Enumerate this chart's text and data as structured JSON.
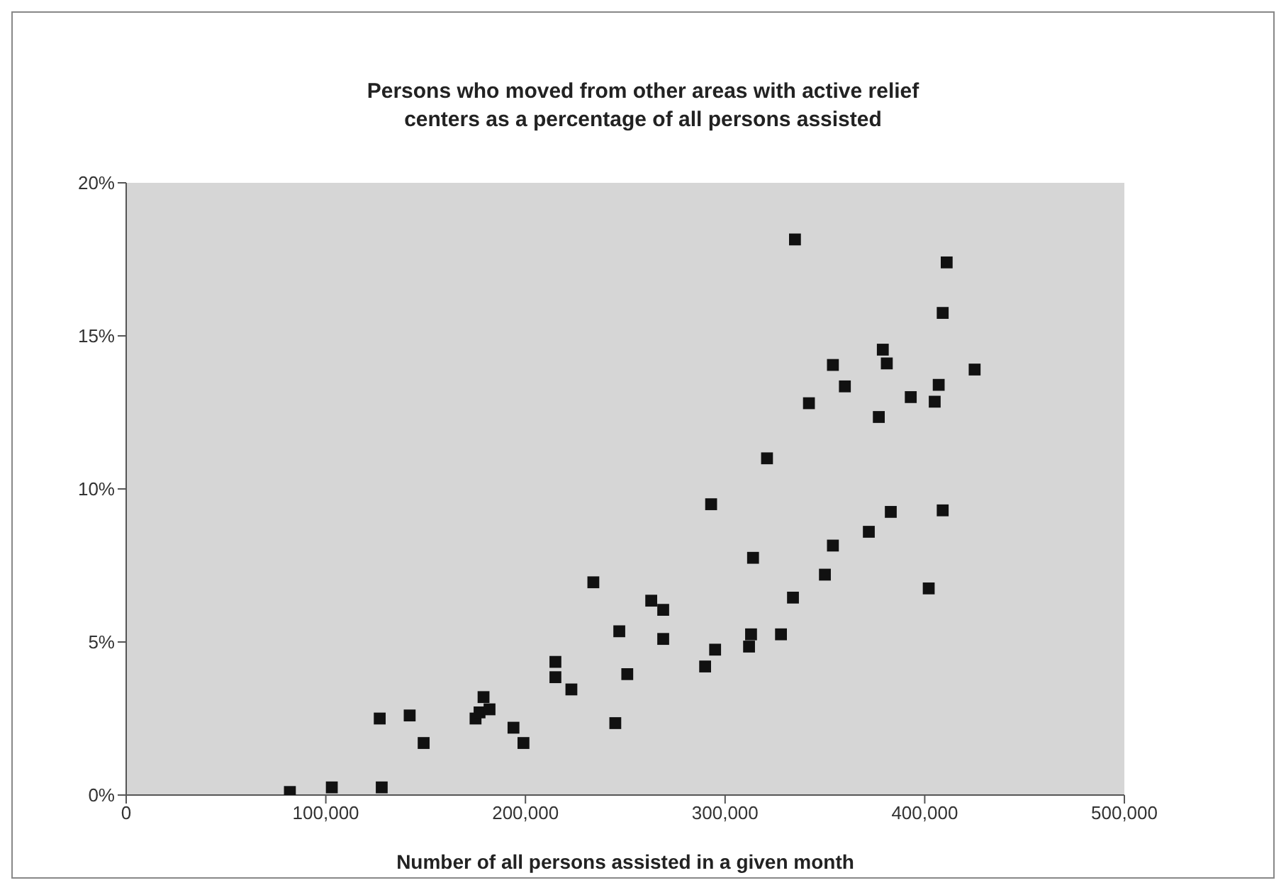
{
  "chart_data": {
    "type": "scatter",
    "title": "Persons who moved from other areas with active relief centers as a percentage of all persons assisted",
    "xlabel": "Number of all persons assisted in a given month",
    "x": [
      82000,
      103000,
      128000,
      127000,
      142000,
      149000,
      175000,
      177000,
      182000,
      179000,
      194000,
      199000,
      215000,
      215000,
      223000,
      234000,
      245000,
      247000,
      251000,
      263000,
      269000,
      269000,
      290000,
      295000,
      293000,
      313000,
      312000,
      314000,
      321000,
      328000,
      334000,
      335000,
      342000,
      350000,
      354000,
      354000,
      360000,
      372000,
      377000,
      379000,
      381000,
      383000,
      393000,
      402000,
      405000,
      407000,
      409000,
      409000,
      411000,
      425000
    ],
    "series": [
      {
        "color": "#111111",
        "values": [
          0.1,
          0.25,
          0.25,
          2.5,
          2.6,
          1.7,
          2.5,
          2.7,
          2.8,
          3.2,
          2.2,
          1.7,
          4.35,
          3.85,
          3.45,
          6.95,
          2.35,
          5.35,
          3.95,
          6.35,
          6.05,
          5.1,
          4.2,
          4.75,
          9.5,
          5.25,
          4.85,
          7.75,
          11.0,
          5.25,
          6.45,
          18.15,
          12.8,
          7.2,
          8.15,
          14.05,
          13.35,
          8.6,
          12.35,
          14.55,
          14.1,
          9.25,
          13.0,
          6.75,
          12.85,
          13.4,
          15.75,
          9.3,
          17.4,
          13.9
        ]
      }
    ],
    "xlim": [
      0,
      500000
    ],
    "xticks": [
      0,
      {
        "value": 100000,
        "label": "100,000"
      },
      {
        "value": 200000,
        "label": "200,000"
      },
      {
        "value": 300000,
        "label": "300,000"
      },
      {
        "value": 400000,
        "label": "400,000"
      },
      {
        "value": 500000,
        "label": "500,000"
      }
    ],
    "ylim": [
      0,
      20
    ],
    "yticks": [
      {
        "value": 0,
        "label": "0%"
      },
      {
        "value": 5,
        "label": "5%"
      },
      {
        "value": 10,
        "label": "10%"
      },
      {
        "value": 15,
        "label": "15%"
      },
      {
        "value": 20,
        "label": "20%"
      }
    ],
    "marker": "square",
    "grid": false
  }
}
